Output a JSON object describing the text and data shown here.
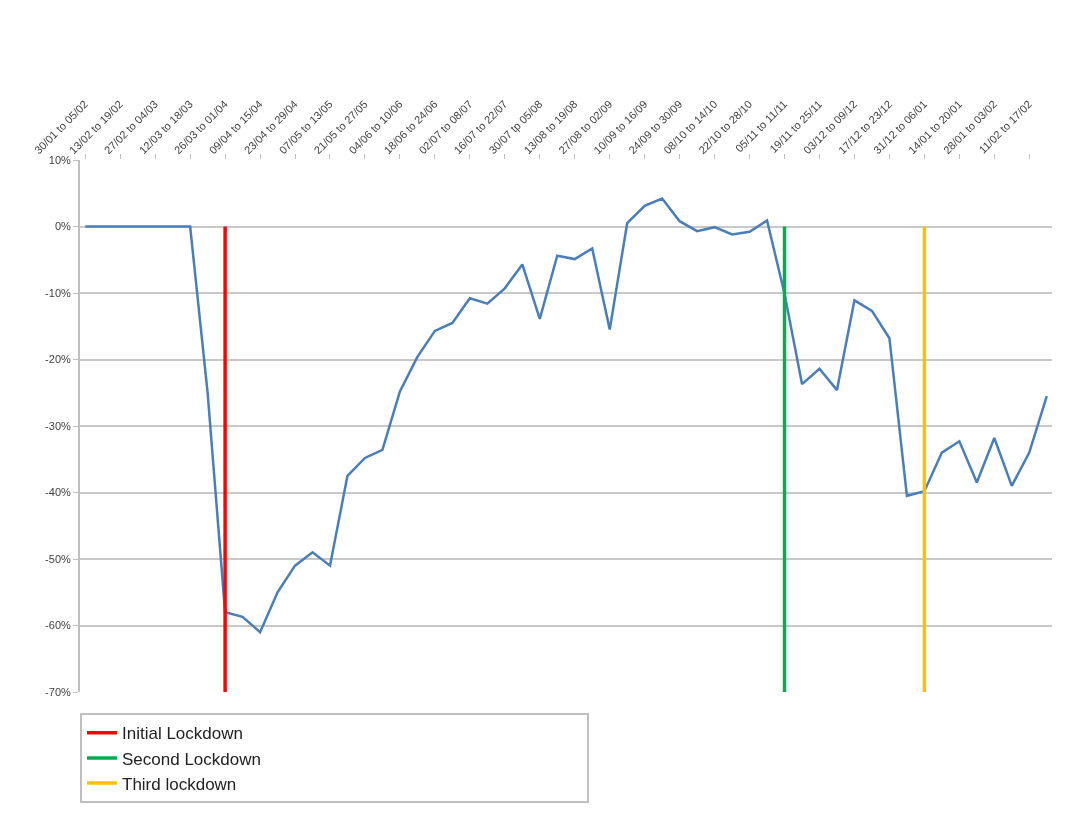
{
  "chart_data": {
    "type": "line",
    "categories": [
      "30/01 to 05/02",
      null,
      "13/02 to 19/02",
      null,
      "27/02 to 04/03",
      null,
      "12/03 to 18/03",
      null,
      "26/03 to 01/04",
      null,
      "09/04 to 15/04",
      null,
      "23/04 to 29/04",
      null,
      "07/05 to 13/05",
      null,
      "21/05 to 27/05",
      null,
      "04/06 to 10/06",
      null,
      "18/06 to 24/06",
      null,
      "02/07 to 08/07",
      null,
      "16/07 to 22/07",
      null,
      "30/07 tp 05/08",
      null,
      "13/08 to 19/08",
      null,
      "27/08 to 02/09",
      null,
      "10/09 to 16/09",
      null,
      "24/09 to 30/09",
      null,
      "08/10 to 14/10",
      null,
      "22/10 to 28/10",
      null,
      "05/11 to 11/11",
      null,
      "19/11 to 25/11",
      null,
      "03/12 to 09/12",
      null,
      "17/12 to 23/12",
      null,
      "31/12 to 06/01",
      null,
      "14/01 to 20/01",
      null,
      "28/01 to 03/02",
      null,
      "11/02 to 17/02",
      null
    ],
    "series": [
      {
        "color": "#4a7ebb",
        "values": [
          0,
          0,
          0,
          0,
          0,
          0,
          0,
          -25,
          -58,
          -58.7,
          -61,
          -55,
          -51,
          -49,
          -51,
          -37.5,
          -34.8,
          -33.6,
          -24.8,
          -19.6,
          -15.7,
          -14.5,
          -10.8,
          -11.6,
          -9.3,
          -5.7,
          -13.9,
          -4.4,
          -4.9,
          -3.3,
          -15.5,
          0.5,
          3.1,
          4.2,
          0.8,
          -0.7,
          -0.1,
          -1.2,
          -0.8,
          0.9,
          -10.1,
          -23.7,
          -21.4,
          -24.6,
          -11.1,
          -12.7,
          -16.8,
          -40.5,
          -39.8,
          -34,
          -32.3,
          -38.5,
          -31.8,
          -39,
          -34,
          -25.5
        ]
      }
    ],
    "ylim": [
      -70,
      10
    ],
    "yticks": [
      {
        "value": -70,
        "label": "-70%"
      },
      {
        "value": -60,
        "label": "-60%"
      },
      {
        "value": -50,
        "label": "-50%"
      },
      {
        "value": -40,
        "label": "-40%"
      },
      {
        "value": -30,
        "label": "-30%"
      },
      {
        "value": -20,
        "label": "-20%"
      },
      {
        "value": -10,
        "label": "-10%"
      },
      {
        "value": 0,
        "label": "0%"
      },
      {
        "value": 10,
        "label": "10%"
      }
    ],
    "grid": "y",
    "legend": "bottom",
    "ref_lines": [
      {
        "axis": "x",
        "value": "26/03 to 01/04",
        "label": "Initial Lockdown",
        "color": "#ff0000"
      },
      {
        "axis": "x",
        "value": "05/11 to 11/11",
        "label": "Second Lockdown",
        "color": "#00b050"
      },
      {
        "axis": "x",
        "value": "31/12 to 06/01",
        "label": "Third lockdown",
        "color": "#ffc000"
      }
    ]
  }
}
